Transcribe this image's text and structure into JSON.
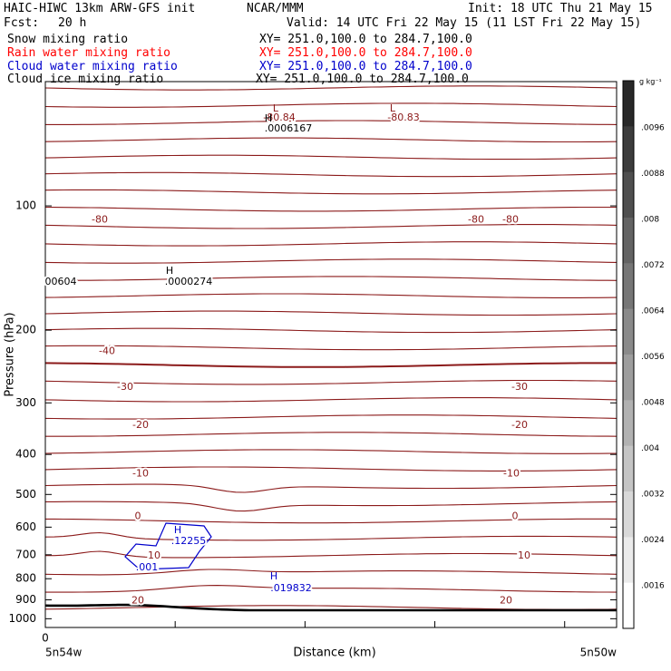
{
  "header": {
    "model": "HAIC-HIWC 13km ARW-GFS init",
    "org": "NCAR/MMM",
    "init": "Init: 18 UTC Thu 21 May 15",
    "fcst_label": "Fcst:",
    "fcst_value": "20 h",
    "valid": "Valid: 14 UTC Fri 22 May 15 (11 LST Fri 22 May 15)",
    "fields": [
      {
        "name": "Snow mixing ratio",
        "xy": "XY= 251.0,100.0 to 284.7,100.0",
        "color": "#000000"
      },
      {
        "name": "Rain water mixing ratio",
        "xy": "XY= 251.0,100.0 to 284.7,100.0",
        "color": "#ff0000"
      },
      {
        "name": "Cloud water mixing ratio",
        "xy": "XY= 251.0,100.0 to 284.7,100.0",
        "color": "#0000cc"
      },
      {
        "name": "Cloud ice mixing ratio",
        "xy": "XY= 251.0,100.0 to 284.7,100.0",
        "color": "#000000"
      }
    ]
  },
  "colorbar": {
    "units": "g kg⁻¹",
    "ticks": [
      ".0096",
      ".0088",
      ".008",
      ".0072",
      ".0064",
      ".0056",
      ".0048",
      ".004",
      ".0032",
      ".0024",
      ".0016"
    ]
  },
  "chart_data": {
    "type": "line",
    "subtype": "vertical cross-section contour plot",
    "xlabel": "Distance (km)",
    "ylabel": "Pressure (hPa)",
    "x_ticks": [
      "0"
    ],
    "x_endpoint_labels": [
      "5n54w",
      "5n50w"
    ],
    "y_ticks": [
      100,
      200,
      300,
      400,
      500,
      600,
      700,
      800,
      900,
      1000
    ],
    "ylim": [
      1050,
      50
    ],
    "y_scale": "log-pressure",
    "temperature_contour_labels": [
      {
        "value": "-80",
        "p": 108
      },
      {
        "value": "-40",
        "p": 225
      },
      {
        "value": "-30",
        "p": 275
      },
      {
        "value": "-20",
        "p": 340
      },
      {
        "value": "-10",
        "p": 445
      },
      {
        "value": "0",
        "p": 565
      },
      {
        "value": "10",
        "p": 705
      },
      {
        "value": "20",
        "p": 905
      }
    ],
    "extrema": [
      {
        "mark": "L",
        "label": "-80.84",
        "color": "#8b1a1a"
      },
      {
        "mark": "L",
        "label": "-80.83",
        "color": "#8b1a1a"
      },
      {
        "mark": "H",
        "label": ".0006167",
        "color": "#000000"
      },
      {
        "mark": "H",
        "label": ".0000274",
        "color": "#000000"
      },
      {
        "mark": "",
        "label": "00604",
        "color": "#000000"
      },
      {
        "mark": "H",
        "label": ".12255",
        "color": "#0000cc"
      },
      {
        "mark": "H",
        "label": ".019832",
        "color": "#0000cc"
      },
      {
        "mark": "",
        "label": ".001",
        "color": "#0000cc"
      }
    ],
    "cloud_water_contour_level": ".001",
    "grid": false,
    "colors": {
      "temperature": "#8b1a1a",
      "cloud_water": "#0000cc",
      "terrain": "#000000"
    }
  }
}
